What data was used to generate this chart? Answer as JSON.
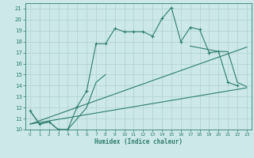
{
  "xlabel": "Humidex (Indice chaleur)",
  "background_color": "#cce8e8",
  "grid_color": "#b0d0d0",
  "line_color": "#2e7d6e",
  "xlim": [
    -0.5,
    23.5
  ],
  "ylim": [
    10,
    21.5
  ],
  "x_ticks": [
    0,
    1,
    2,
    3,
    4,
    5,
    6,
    7,
    8,
    9,
    10,
    11,
    12,
    13,
    14,
    15,
    16,
    17,
    18,
    19,
    20,
    21,
    22,
    23
  ],
  "y_ticks": [
    10,
    11,
    12,
    13,
    14,
    15,
    16,
    17,
    18,
    19,
    20,
    21
  ],
  "series_main": {
    "x": [
      0,
      1,
      2,
      3,
      4,
      5,
      6,
      7,
      8,
      9,
      10,
      11,
      12,
      13,
      14,
      15,
      16,
      17,
      18,
      19,
      20,
      21,
      22
    ],
    "y": [
      11.7,
      10.5,
      10.7,
      10.0,
      10.0,
      12.1,
      13.5,
      17.8,
      17.8,
      19.2,
      18.9,
      18.9,
      18.9,
      18.5,
      20.1,
      21.1,
      18.0,
      19.3,
      19.1,
      17.0,
      17.1,
      14.3,
      14.0
    ]
  },
  "series_lower": {
    "segments": [
      {
        "x": [
          0,
          1,
          2,
          3,
          4,
          5,
          6,
          7,
          8
        ],
        "y": [
          11.7,
          10.5,
          10.7,
          10.0,
          10.0,
          11.0,
          12.0,
          14.3,
          15.0
        ]
      },
      {
        "x": [
          17,
          20,
          21,
          22,
          23
        ],
        "y": [
          17.6,
          17.1,
          17.1,
          14.3,
          13.9
        ]
      }
    ]
  },
  "line1": {
    "x": [
      0,
      23
    ],
    "y": [
      10.5,
      13.8
    ]
  },
  "line2": {
    "x": [
      0,
      23
    ],
    "y": [
      10.5,
      17.5
    ]
  }
}
